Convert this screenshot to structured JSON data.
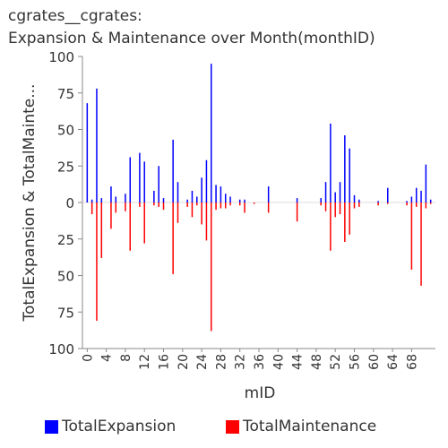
{
  "title_line1": "cgrates__cgrates:",
  "title_line2": "Expansion & Maintenance over Month(monthID)",
  "chart_data": {
    "type": "bar",
    "title": "cgrates__cgrates: Expansion & Maintenance over Month(monthID)",
    "xlabel": "mID",
    "ylabel": "TotalExpansion & TotalMainte...",
    "x_ticks": [
      "0",
      "4",
      "8",
      "12",
      "16",
      "20",
      "24",
      "28",
      "32",
      "36",
      "40",
      "44",
      "48",
      "52",
      "56",
      "60",
      "64",
      "68"
    ],
    "y_ticks_up": [
      "100",
      "75",
      "50",
      "25",
      "0"
    ],
    "y_ticks_down": [
      "25",
      "50",
      "75",
      "100"
    ],
    "ylim": [
      -100,
      100
    ],
    "x_range": [
      -1,
      70
    ],
    "legend_position": "bottom",
    "series": [
      {
        "name": "TotalExpansion",
        "color": "#0000ff",
        "points": [
          [
            0,
            68
          ],
          [
            1,
            2
          ],
          [
            2,
            78
          ],
          [
            3,
            3
          ],
          [
            5,
            11
          ],
          [
            6,
            4
          ],
          [
            8,
            6
          ],
          [
            9,
            31
          ],
          [
            11,
            34
          ],
          [
            12,
            28
          ],
          [
            14,
            8
          ],
          [
            15,
            25
          ],
          [
            16,
            3
          ],
          [
            18,
            43
          ],
          [
            19,
            14
          ],
          [
            21,
            2
          ],
          [
            22,
            8
          ],
          [
            23,
            4
          ],
          [
            24,
            17
          ],
          [
            25,
            29
          ],
          [
            26,
            95
          ],
          [
            27,
            12
          ],
          [
            28,
            11
          ],
          [
            29,
            6
          ],
          [
            30,
            4
          ],
          [
            32,
            2
          ],
          [
            33,
            2
          ],
          [
            38,
            11
          ],
          [
            44,
            3
          ],
          [
            49,
            3
          ],
          [
            50,
            14
          ],
          [
            51,
            54
          ],
          [
            52,
            7
          ],
          [
            53,
            14
          ],
          [
            54,
            46
          ],
          [
            55,
            37
          ],
          [
            56,
            5
          ],
          [
            57,
            2
          ],
          [
            61,
            1
          ],
          [
            63,
            10
          ],
          [
            67,
            1
          ],
          [
            68,
            4
          ],
          [
            69,
            10
          ],
          [
            70,
            8
          ],
          [
            71,
            26
          ],
          [
            72,
            2
          ]
        ]
      },
      {
        "name": "TotalMaintenance",
        "color": "#ff0000",
        "points": [
          [
            1,
            8
          ],
          [
            2,
            81
          ],
          [
            3,
            38
          ],
          [
            5,
            18
          ],
          [
            6,
            7
          ],
          [
            8,
            6
          ],
          [
            9,
            33
          ],
          [
            11,
            3
          ],
          [
            12,
            28
          ],
          [
            14,
            2
          ],
          [
            15,
            3
          ],
          [
            16,
            5
          ],
          [
            18,
            49
          ],
          [
            19,
            14
          ],
          [
            21,
            3
          ],
          [
            22,
            10
          ],
          [
            23,
            2
          ],
          [
            24,
            15
          ],
          [
            25,
            26
          ],
          [
            26,
            88
          ],
          [
            27,
            5
          ],
          [
            28,
            4
          ],
          [
            29,
            4
          ],
          [
            30,
            2
          ],
          [
            32,
            2
          ],
          [
            33,
            7
          ],
          [
            35,
            1
          ],
          [
            38,
            7
          ],
          [
            44,
            13
          ],
          [
            49,
            2
          ],
          [
            50,
            6
          ],
          [
            51,
            33
          ],
          [
            52,
            10
          ],
          [
            53,
            8
          ],
          [
            54,
            27
          ],
          [
            55,
            22
          ],
          [
            56,
            4
          ],
          [
            57,
            3
          ],
          [
            61,
            2
          ],
          [
            63,
            1
          ],
          [
            67,
            2
          ],
          [
            68,
            46
          ],
          [
            69,
            3
          ],
          [
            70,
            57
          ],
          [
            71,
            4
          ],
          [
            72,
            1
          ]
        ]
      }
    ]
  }
}
